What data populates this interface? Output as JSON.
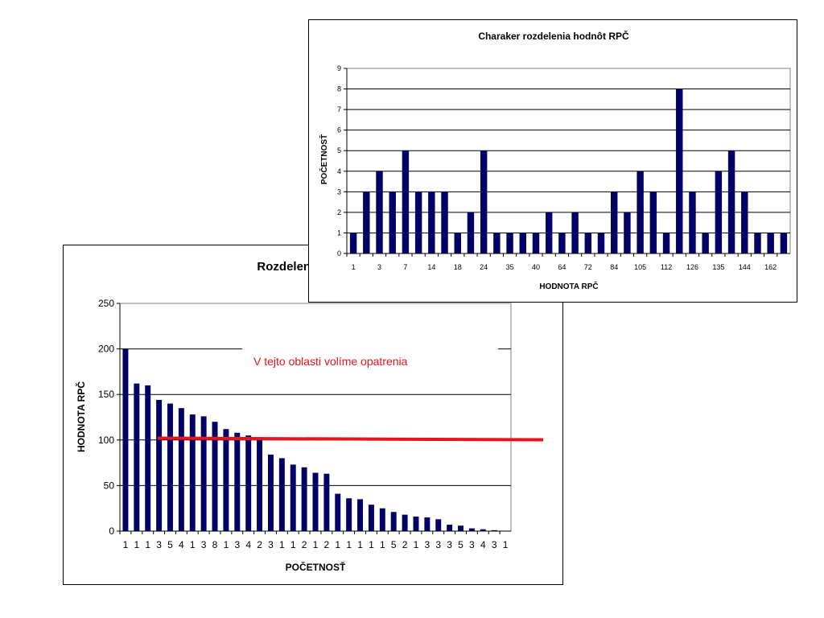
{
  "chart_data": [
    {
      "type": "bar",
      "title": "Rozdelenie",
      "xlabel": "POČETNOSŤ",
      "ylabel": "HODNOTA RPČ",
      "ylim": [
        0,
        250
      ],
      "yticks": [
        "0",
        "50",
        "100",
        "150",
        "200",
        "250"
      ],
      "grid": true,
      "categories": [
        "1",
        "1",
        "1",
        "3",
        "5",
        "4",
        "1",
        "3",
        "8",
        "1",
        "3",
        "4",
        "2",
        "3",
        "1",
        "1",
        "2",
        "1",
        "2",
        "1",
        "1",
        "1",
        "1",
        "1",
        "5",
        "2",
        "1",
        "3",
        "3",
        "3",
        "5",
        "3",
        "4",
        "3",
        "1"
      ],
      "values": [
        200,
        162,
        160,
        144,
        140,
        135,
        128,
        126,
        120,
        112,
        108,
        105,
        100,
        84,
        80,
        73,
        70,
        64,
        63,
        41,
        36,
        35,
        29,
        25,
        21,
        18,
        16,
        15,
        13,
        7,
        6,
        3,
        2,
        1,
        0
      ],
      "bar_color": "#000066",
      "threshold_value": 102,
      "threshold_color": "#e8141c",
      "annotation": "V tejto oblasti volíme opatrenia",
      "annotation_color": "#e8141c"
    },
    {
      "type": "bar",
      "title": "Charaker rozdelenia hodnôt RPČ",
      "xlabel": "HODNOTA RPČ",
      "ylabel": "POČETNOSŤ",
      "ylim": [
        0,
        9
      ],
      "yticks": [
        "0",
        "1",
        "2",
        "3",
        "4",
        "5",
        "6",
        "7",
        "8",
        "9"
      ],
      "grid": true,
      "tick_labels": [
        "1",
        "3",
        "7",
        "14",
        "18",
        "24",
        "35",
        "40",
        "64",
        "72",
        "84",
        "105",
        "112",
        "126",
        "135",
        "144",
        "162"
      ],
      "values": [
        1,
        3,
        4,
        3,
        5,
        3,
        3,
        3,
        1,
        2,
        5,
        1,
        1,
        1,
        1,
        2,
        1,
        2,
        1,
        1,
        3,
        2,
        4,
        3,
        1,
        8,
        3,
        1,
        4,
        5,
        3,
        1,
        1,
        1
      ],
      "bar_color": "#000066"
    }
  ]
}
